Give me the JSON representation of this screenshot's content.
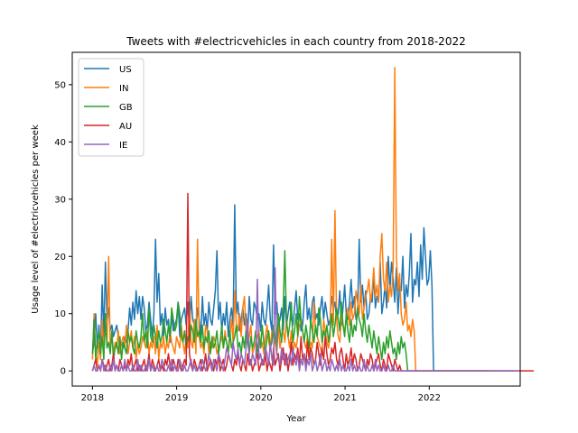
{
  "chart_data": {
    "type": "line",
    "title": "Tweets with #electricvehicles in each country from 2018-2022",
    "xlabel": "Year",
    "ylabel": "Usage level of #electricvehicles per week",
    "xlim": [
      2017.76,
      2023.08
    ],
    "ylim": [
      -2.65,
      55.65
    ],
    "x_ticks": [
      2018,
      2019,
      2020,
      2021,
      2022
    ],
    "y_ticks": [
      0,
      10,
      20,
      30,
      40,
      50
    ],
    "x_start": 2018.0,
    "week_step": 0.0192,
    "grid": false,
    "legend_position": "top-left",
    "series": [
      {
        "name": "US",
        "color": "#1f77b4",
        "values": [
          3,
          5,
          10,
          4,
          8,
          3,
          15,
          6,
          19,
          9,
          11,
          7,
          8,
          6,
          7,
          8,
          6,
          4,
          5,
          4,
          6,
          5,
          7,
          11,
          8,
          12,
          9,
          14,
          10,
          13,
          9,
          13,
          11,
          7,
          8,
          12,
          9,
          6,
          10,
          23,
          12,
          17,
          8,
          10,
          6,
          11,
          8,
          9,
          5,
          10,
          7,
          8,
          9,
          12,
          6,
          9,
          10,
          11,
          8,
          12,
          7,
          13,
          9,
          8,
          7,
          11,
          9,
          6,
          13,
          8,
          10,
          7,
          12,
          9,
          8,
          11,
          14,
          21,
          9,
          12,
          7,
          10,
          8,
          12,
          6,
          9,
          11,
          8,
          29,
          10,
          12,
          7,
          9,
          11,
          8,
          10,
          6,
          13,
          9,
          8,
          12,
          11,
          9,
          10,
          7,
          12,
          9,
          8,
          11,
          15,
          9,
          7,
          22,
          10,
          12,
          8,
          9,
          11,
          7,
          13,
          8,
          10,
          12,
          9,
          8,
          11,
          14,
          9,
          10,
          7,
          8,
          12,
          15,
          9,
          11,
          8,
          12,
          13,
          9,
          10,
          8,
          11,
          13,
          9,
          12,
          10,
          8,
          9,
          13,
          11,
          12,
          9,
          10,
          14,
          8,
          11,
          15,
          10,
          9,
          12,
          16,
          11,
          13,
          9,
          10,
          23,
          12,
          15,
          11,
          14,
          9,
          10,
          13,
          12,
          17,
          11,
          13,
          12,
          19,
          10,
          12,
          15,
          11,
          20,
          14,
          19,
          16,
          12,
          18,
          10,
          15,
          14,
          20,
          11,
          15,
          13,
          17,
          24,
          12,
          16,
          15,
          19,
          13,
          22,
          16,
          25,
          20,
          15,
          16,
          21,
          15,
          0,
          0,
          0,
          0,
          0,
          0,
          0,
          0,
          0,
          0,
          0,
          0,
          0,
          0,
          0,
          0,
          0,
          0,
          0,
          0,
          0,
          0,
          0,
          0,
          0,
          0,
          0,
          0,
          0,
          0,
          0,
          0,
          0,
          0,
          0
        ]
      },
      {
        "name": "IN",
        "color": "#ff7f0e",
        "values": [
          2,
          10,
          3,
          1,
          5,
          2,
          9,
          3,
          8,
          5,
          20,
          4,
          6,
          3,
          5,
          4,
          7,
          3,
          5,
          6,
          4,
          8,
          3,
          5,
          7,
          4,
          6,
          2,
          5,
          3,
          4,
          6,
          5,
          4,
          7,
          3,
          5,
          4,
          6,
          3,
          8,
          2,
          5,
          4,
          6,
          3,
          5,
          4,
          7,
          5,
          4,
          3,
          6,
          5,
          4,
          8,
          5,
          3,
          6,
          4,
          12,
          5,
          4,
          9,
          3,
          23,
          6,
          4,
          5,
          3,
          8,
          7,
          3,
          5,
          4,
          6,
          5,
          3,
          4,
          5,
          6,
          4,
          7,
          5,
          3,
          6,
          9,
          5,
          14,
          8,
          7,
          10,
          6,
          11,
          13,
          7,
          5,
          6,
          8,
          3,
          4,
          5,
          6,
          7,
          4,
          5,
          3,
          6,
          8,
          5,
          4,
          7,
          6,
          5,
          3,
          8,
          4,
          6,
          7,
          5,
          9,
          6,
          4,
          7,
          3,
          5,
          4,
          6,
          8,
          9,
          7,
          5,
          4,
          6,
          3,
          5,
          4,
          12,
          7,
          6,
          5,
          4,
          3,
          9,
          7,
          5,
          4,
          6,
          23,
          8,
          28,
          9,
          6,
          5,
          10,
          8,
          7,
          9,
          11,
          8,
          12,
          9,
          10,
          14,
          12,
          10,
          15,
          9,
          11,
          13,
          14,
          16,
          12,
          14,
          18,
          13,
          15,
          12,
          20,
          24,
          16,
          14,
          19,
          12,
          15,
          13,
          18,
          53,
          20,
          14,
          17,
          10,
          8,
          9,
          12,
          7,
          8,
          6,
          9,
          7,
          0,
          0,
          0,
          0,
          0,
          0,
          0,
          0,
          0,
          0,
          0,
          0,
          0,
          0,
          0,
          0,
          0,
          0,
          0,
          0,
          0,
          0,
          0,
          0,
          0,
          0,
          0,
          0,
          0,
          0,
          0,
          0,
          0,
          0,
          0,
          0,
          0,
          0,
          0,
          0,
          0,
          0,
          0,
          0,
          0,
          0
        ]
      },
      {
        "name": "GB",
        "color": "#2ca02c",
        "values": [
          3,
          9,
          2,
          5,
          7,
          3,
          6,
          2,
          10,
          4,
          5,
          3,
          7,
          2,
          4,
          5,
          3,
          6,
          2,
          5,
          4,
          3,
          7,
          5,
          6,
          4,
          3,
          7,
          5,
          4,
          6,
          10,
          5,
          7,
          4,
          11,
          6,
          5,
          8,
          6,
          4,
          7,
          5,
          6,
          9,
          7,
          5,
          8,
          6,
          11,
          9,
          7,
          8,
          12,
          10,
          6,
          5,
          7,
          4,
          6,
          5,
          8,
          7,
          5,
          9,
          6,
          7,
          5,
          8,
          4,
          6,
          5,
          7,
          3,
          6,
          4,
          5,
          7,
          3,
          5,
          8,
          4,
          6,
          5,
          3,
          7,
          4,
          5,
          6,
          8,
          4,
          5,
          3,
          6,
          4,
          7,
          5,
          3,
          6,
          4,
          5,
          7,
          3,
          6,
          4,
          8,
          5,
          3,
          6,
          7,
          4,
          5,
          8,
          6,
          4,
          10,
          7,
          5,
          11,
          21,
          9,
          6,
          8,
          12,
          5,
          7,
          10,
          6,
          13,
          9,
          7,
          5,
          8,
          6,
          4,
          9,
          7,
          5,
          8,
          6,
          11,
          9,
          5,
          7,
          6,
          8,
          5,
          7,
          10,
          6,
          8,
          11,
          9,
          7,
          12,
          8,
          6,
          10,
          7,
          5,
          9,
          6,
          8,
          7,
          11,
          9,
          8,
          6,
          10,
          7,
          5,
          8,
          6,
          4,
          7,
          5,
          3,
          6,
          4,
          2,
          5,
          3,
          6,
          4,
          7,
          5,
          3,
          4,
          2,
          5,
          3,
          6,
          4,
          5,
          3,
          0,
          0,
          0,
          0,
          0,
          0,
          0,
          0,
          0,
          0,
          0,
          0,
          0,
          0,
          0,
          0,
          0,
          0,
          0,
          0,
          0,
          0,
          0,
          0,
          0,
          0,
          0,
          0,
          0,
          0,
          0,
          0,
          0,
          0,
          0,
          0,
          0,
          0,
          0,
          0,
          0,
          0,
          0,
          0,
          0,
          0,
          0,
          0,
          0,
          0,
          0,
          0,
          0,
          0,
          0,
          0,
          0,
          0,
          0,
          0,
          0,
          0,
          0,
          0,
          0,
          0,
          0,
          0
        ]
      },
      {
        "name": "AU",
        "color": "#d62728",
        "values": [
          0,
          1,
          2,
          0,
          1,
          0,
          2,
          1,
          0,
          1,
          2,
          0,
          1,
          3,
          0,
          1,
          0,
          2,
          1,
          0,
          1,
          0,
          2,
          1,
          3,
          0,
          1,
          2,
          0,
          1,
          0,
          1,
          2,
          0,
          1,
          3,
          0,
          2,
          1,
          0,
          1,
          2,
          0,
          1,
          0,
          2,
          1,
          3,
          1,
          0,
          2,
          1,
          0,
          2,
          1,
          0,
          1,
          2,
          1,
          31,
          3,
          1,
          0,
          2,
          1,
          0,
          1,
          2,
          0,
          1,
          3,
          0,
          1,
          2,
          1,
          0,
          2,
          1,
          3,
          0,
          1,
          2,
          0,
          1,
          3,
          2,
          1,
          0,
          2,
          1,
          3,
          1,
          0,
          2,
          1,
          0,
          3,
          1,
          2,
          0,
          1,
          2,
          3,
          0,
          1,
          2,
          1,
          3,
          0,
          2,
          1,
          0,
          4,
          1,
          2,
          3,
          0,
          2,
          4,
          1,
          3,
          0,
          2,
          5,
          1,
          3,
          2,
          4,
          1,
          6,
          2,
          3,
          1,
          5,
          2,
          4,
          3,
          1,
          2,
          5,
          3,
          1,
          4,
          2,
          6,
          3,
          1,
          2,
          4,
          3,
          5,
          2,
          1,
          3,
          4,
          2,
          0,
          3,
          1,
          2,
          4,
          1,
          3,
          2,
          0,
          1,
          3,
          2,
          1,
          0,
          2,
          1,
          3,
          2,
          0,
          1,
          2,
          3,
          1,
          0,
          2,
          1,
          0,
          3,
          2,
          1,
          0,
          2,
          1,
          0,
          1,
          0,
          0,
          0,
          0,
          0,
          0,
          0,
          0,
          0,
          0,
          0,
          0,
          0,
          0,
          0,
          0,
          0,
          0,
          0,
          0,
          0,
          0,
          0,
          0,
          0,
          0,
          0,
          0,
          0,
          0,
          0,
          0,
          0,
          0,
          0,
          0,
          0,
          0,
          0,
          0,
          0,
          0,
          0,
          0,
          0,
          0,
          0,
          0,
          0,
          0,
          0,
          0,
          0,
          0,
          0,
          0,
          0,
          0,
          0,
          0,
          0,
          0,
          0,
          0,
          0,
          0,
          0,
          0,
          0,
          0,
          0,
          0,
          0,
          0,
          0,
          0,
          0,
          0,
          0,
          0,
          0,
          0,
          0
        ]
      },
      {
        "name": "IE",
        "color": "#9467bd",
        "values": [
          0,
          1,
          0,
          0,
          1,
          0,
          2,
          0,
          1,
          0,
          0,
          1,
          0,
          2,
          0,
          1,
          0,
          0,
          1,
          0,
          2,
          0,
          1,
          0,
          0,
          1,
          0,
          0,
          2,
          0,
          1,
          0,
          0,
          1,
          0,
          2,
          0,
          1,
          0,
          0,
          1,
          0,
          0,
          2,
          1,
          0,
          0,
          1,
          0,
          2,
          0,
          1,
          0,
          0,
          2,
          1,
          0,
          1,
          0,
          0,
          1,
          2,
          0,
          1,
          0,
          0,
          1,
          0,
          2,
          1,
          0,
          1,
          3,
          1,
          0,
          2,
          1,
          0,
          3,
          2,
          1,
          0,
          2,
          4,
          3,
          2,
          1,
          5,
          3,
          2,
          4,
          1,
          3,
          2,
          1,
          4,
          9,
          2,
          1,
          3,
          2,
          1,
          16,
          2,
          3,
          1,
          2,
          4,
          3,
          1,
          5,
          2,
          1,
          18,
          3,
          2,
          1,
          4,
          2,
          3,
          1,
          2,
          3,
          1,
          4,
          2,
          1,
          3,
          0,
          2,
          1,
          3,
          0,
          2,
          1,
          3,
          0,
          1,
          2,
          0,
          1,
          3,
          0,
          1,
          2,
          0,
          1,
          0,
          2,
          1,
          0,
          1,
          0,
          2,
          0,
          1,
          0,
          0,
          1,
          0,
          2,
          0,
          1,
          0,
          0,
          1,
          0,
          0,
          2,
          0,
          1,
          0,
          0,
          1,
          0,
          2,
          0,
          1,
          0,
          0,
          1,
          0,
          0,
          1,
          0,
          0,
          1,
          0,
          0,
          0,
          0,
          0,
          0,
          0,
          0,
          0,
          0,
          0,
          0,
          0,
          0,
          0,
          0,
          0,
          0,
          0,
          0,
          0,
          0,
          0,
          0,
          0,
          0,
          0,
          0,
          0,
          0,
          0,
          0,
          0,
          0,
          0,
          0,
          0,
          0,
          0,
          0,
          0,
          0,
          0,
          0,
          0,
          0,
          0,
          0,
          0,
          0,
          0,
          0,
          0,
          0,
          0,
          0,
          0,
          0,
          0,
          0,
          0,
          0,
          0,
          0,
          0,
          0,
          0,
          0,
          0,
          0,
          0,
          0,
          0,
          0,
          0,
          0,
          0,
          0,
          0
        ]
      }
    ]
  }
}
